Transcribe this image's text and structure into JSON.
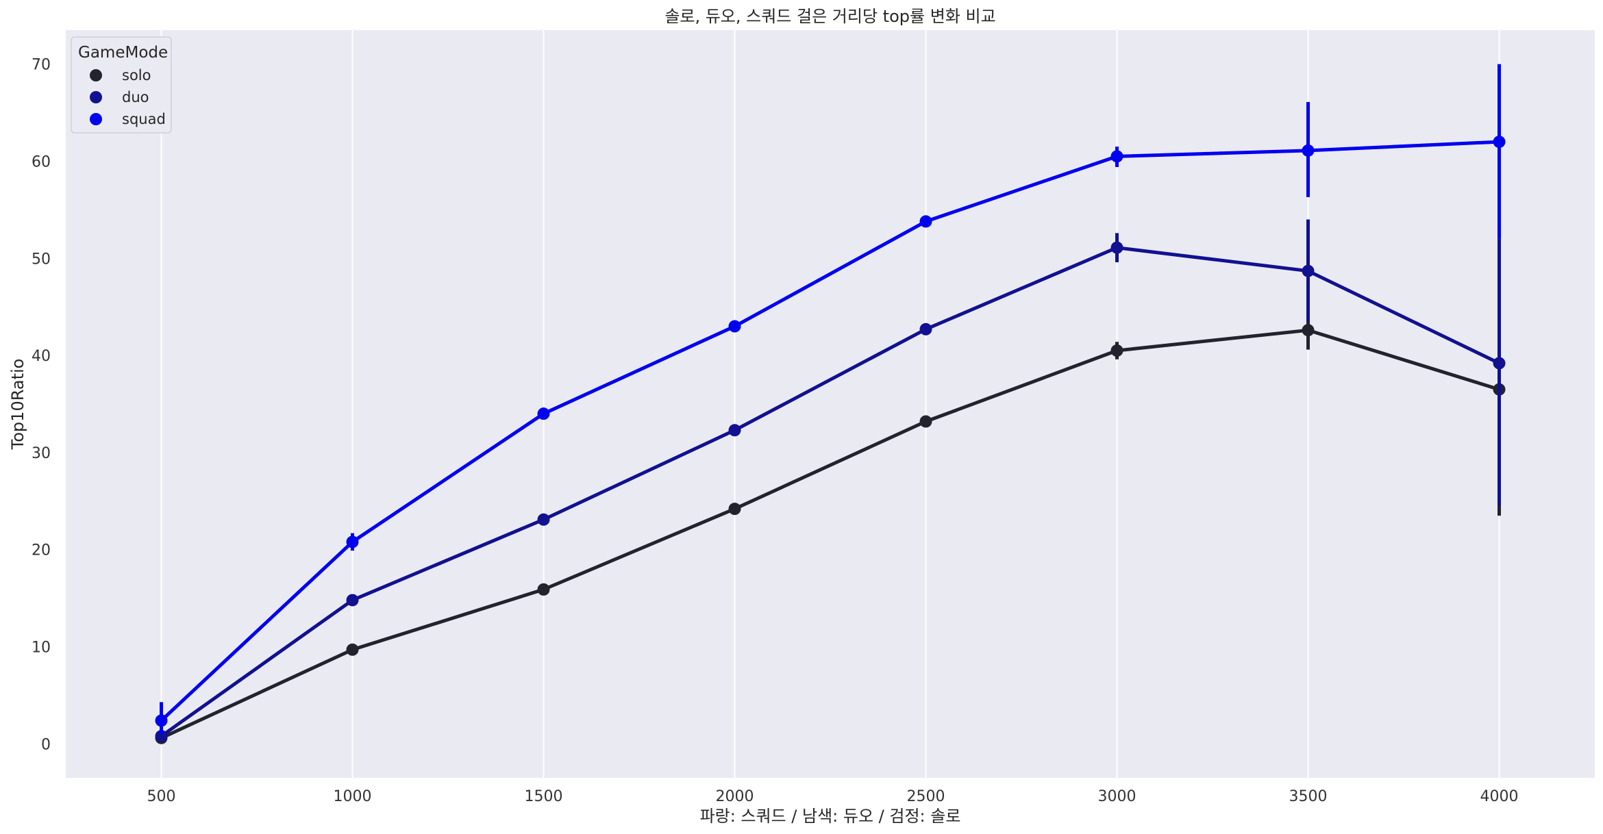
{
  "chart_data": {
    "type": "line",
    "title": "솔로, 듀오, 스쿼드 걸은 거리당 top률 변화 비교",
    "xlabel": "파랑: 스쿼드 / 남색: 듀오 / 검정: 솔로",
    "ylabel": "Top10Ratio",
    "categories": [
      "500",
      "1000",
      "1500",
      "2000",
      "2500",
      "3000",
      "3500",
      "4000"
    ],
    "yticks": [
      "0",
      "10",
      "20",
      "30",
      "40",
      "50",
      "60",
      "70"
    ],
    "ylim": [
      -3.5,
      73.5
    ],
    "grid": true,
    "legend": {
      "title": "GameMode",
      "placement": "top-left"
    },
    "series": [
      {
        "name": "solo",
        "color": "#23232e",
        "values": [
          0.6,
          9.7,
          15.9,
          24.2,
          33.2,
          40.5,
          42.6,
          36.5
        ],
        "error": [
          [
            0.3,
            1.0
          ],
          null,
          null,
          null,
          null,
          [
            39.6,
            41.4
          ],
          [
            40.6,
            44.8
          ],
          [
            23.5,
            51.5
          ]
        ]
      },
      {
        "name": "duo",
        "color": "#111191",
        "values": [
          0.8,
          14.8,
          23.1,
          32.3,
          42.7,
          51.1,
          48.7,
          39.2
        ],
        "error": [
          [
            0.4,
            1.4
          ],
          null,
          null,
          null,
          null,
          [
            49.6,
            52.6
          ],
          [
            43.5,
            54.0
          ],
          [
            24.5,
            52.0
          ]
        ]
      },
      {
        "name": "squad",
        "color": "#0000f0",
        "values": [
          2.4,
          20.8,
          34.0,
          43.0,
          53.8,
          60.5,
          61.1,
          62.0
        ],
        "error": [
          [
            1.0,
            4.3
          ],
          [
            19.9,
            21.7
          ],
          null,
          null,
          null,
          [
            59.4,
            61.5
          ],
          [
            56.3,
            66.1
          ],
          [
            52.0,
            70.0
          ]
        ]
      }
    ]
  }
}
